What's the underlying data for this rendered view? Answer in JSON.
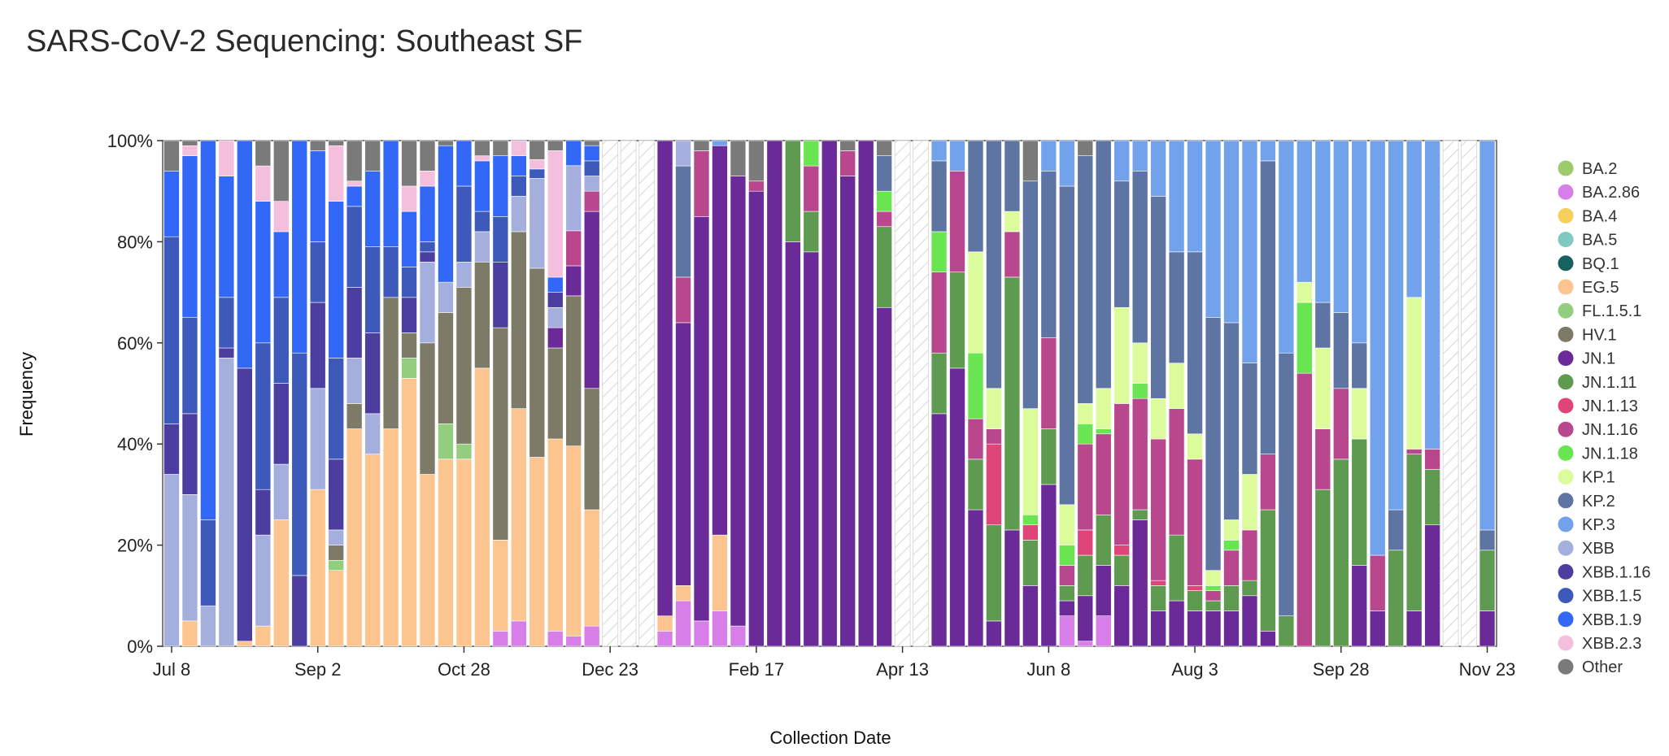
{
  "chart_data": {
    "type": "bar",
    "stacked": true,
    "title": "SARS-CoV-2 Sequencing: Southeast SF",
    "xlabel": "Collection Date",
    "ylabel": "Frequency",
    "ylim": [
      0,
      100
    ],
    "yticks": [
      "0%",
      "20%",
      "40%",
      "60%",
      "80%",
      "100%"
    ],
    "x_tick_labels": [
      "Jul 8",
      "Sep 2",
      "Oct 28",
      "Dec 23",
      "Feb 17",
      "Apr 13",
      "Jun 8",
      "Aug 3",
      "Sep 28",
      "Nov 23"
    ],
    "legend": [
      {
        "name": "BA.2",
        "color": "#9dca6b"
      },
      {
        "name": "BA.2.86",
        "color": "#d77ee8"
      },
      {
        "name": "BA.4",
        "color": "#f7cf5b"
      },
      {
        "name": "BA.5",
        "color": "#7fc9c0"
      },
      {
        "name": "BQ.1",
        "color": "#17615f"
      },
      {
        "name": "EG.5",
        "color": "#fcc48e"
      },
      {
        "name": "FL.1.5.1",
        "color": "#93cd7e"
      },
      {
        "name": "HV.1",
        "color": "#7d7b67"
      },
      {
        "name": "JN.1",
        "color": "#6a2a97"
      },
      {
        "name": "JN.1.11",
        "color": "#5f9a51"
      },
      {
        "name": "JN.1.13",
        "color": "#e0457a"
      },
      {
        "name": "JN.1.16",
        "color": "#b9478d"
      },
      {
        "name": "JN.1.18",
        "color": "#68e550"
      },
      {
        "name": "KP.1",
        "color": "#dcfc9c"
      },
      {
        "name": "KP.2",
        "color": "#5e74a3"
      },
      {
        "name": "KP.3",
        "color": "#72a2ec"
      },
      {
        "name": "XBB",
        "color": "#a5afdd"
      },
      {
        "name": "XBB.1.16",
        "color": "#4c3ea0"
      },
      {
        "name": "XBB.1.5",
        "color": "#3d59ba"
      },
      {
        "name": "XBB.1.9",
        "color": "#3367f5"
      },
      {
        "name": "XBB.2.3",
        "color": "#f3bfdd"
      },
      {
        "name": "Other",
        "color": "#7a7a7a"
      }
    ],
    "weeks": [
      {
        "w": 0,
        "s": {
          "XBB": 34,
          "XBB.1.16": 10,
          "XBB.1.5": 37,
          "XBB.1.9": 13,
          "Other": 6
        }
      },
      {
        "w": 1,
        "s": {
          "EG.5": 5,
          "XBB": 25,
          "XBB.1.16": 16,
          "XBB.1.5": 19,
          "XBB.1.9": 32,
          "XBB.2.3": 2,
          "Other": 1
        }
      },
      {
        "w": 2,
        "s": {
          "XBB": 8,
          "XBB.1.5": 17,
          "XBB.1.9": 75
        }
      },
      {
        "w": 3,
        "s": {
          "XBB": 57,
          "XBB.1.16": 2,
          "XBB.1.5": 10,
          "XBB.1.9": 24,
          "XBB.2.3": 7
        }
      },
      {
        "w": 4,
        "s": {
          "EG.5": 1,
          "XBB.1.16": 54,
          "XBB.1.9": 45
        }
      },
      {
        "w": 5,
        "s": {
          "EG.5": 4,
          "XBB": 18,
          "XBB.1.16": 9,
          "XBB.1.5": 29,
          "XBB.1.9": 28,
          "XBB.2.3": 7,
          "Other": 5
        }
      },
      {
        "w": 6,
        "s": {
          "EG.5": 25,
          "XBB": 11,
          "XBB.1.16": 16,
          "XBB.1.5": 17,
          "XBB.1.9": 13,
          "XBB.2.3": 6,
          "Other": 12
        }
      },
      {
        "w": 7,
        "s": {
          "XBB.1.16": 14,
          "XBB.1.5": 44,
          "XBB.1.9": 42
        }
      },
      {
        "w": 8,
        "s": {
          "EG.5": 31,
          "XBB": 20,
          "XBB.1.16": 17,
          "XBB.1.5": 12,
          "XBB.1.9": 18,
          "Other": 2
        }
      },
      {
        "w": 9,
        "s": {
          "EG.5": 15,
          "FL.1.5.1": 2,
          "HV.1": 3,
          "XBB": 3,
          "XBB.1.16": 14,
          "XBB.1.5": 20,
          "XBB.1.9": 31,
          "XBB.2.3": 11,
          "Other": 1
        }
      },
      {
        "w": 10,
        "s": {
          "EG.5": 43,
          "HV.1": 5,
          "XBB": 9,
          "XBB.1.16": 14,
          "XBB.1.5": 16,
          "XBB.1.9": 4,
          "XBB.2.3": 1,
          "Other": 8
        }
      },
      {
        "w": 11,
        "s": {
          "EG.5": 38,
          "XBB": 8,
          "XBB.1.16": 16,
          "XBB.1.5": 17,
          "XBB.1.9": 15,
          "Other": 6
        }
      },
      {
        "w": 12,
        "s": {
          "EG.5": 43,
          "HV.1": 26,
          "XBB.1.5": 10,
          "XBB.1.9": 21
        }
      },
      {
        "w": 13,
        "s": {
          "EG.5": 53,
          "FL.1.5.1": 4,
          "HV.1": 5,
          "XBB.1.16": 7,
          "XBB.1.5": 6,
          "XBB.1.9": 11,
          "XBB.2.3": 5,
          "Other": 9
        }
      },
      {
        "w": 14,
        "s": {
          "EG.5": 34,
          "HV.1": 26,
          "XBB": 16,
          "XBB.1.16": 2,
          "XBB.1.5": 2,
          "XBB.1.9": 11,
          "XBB.2.3": 3,
          "Other": 6
        }
      },
      {
        "w": 15,
        "s": {
          "EG.5": 37,
          "FL.1.5.1": 7,
          "HV.1": 22,
          "XBB": 6,
          "XBB.1.9": 27,
          "Other": 1
        }
      },
      {
        "w": 16,
        "s": {
          "EG.5": 37,
          "FL.1.5.1": 3,
          "HV.1": 31,
          "XBB": 5,
          "XBB.1.5": 15,
          "XBB.1.9": 9
        }
      },
      {
        "w": 17,
        "s": {
          "EG.5": 55,
          "HV.1": 21,
          "XBB": 6,
          "XBB.1.5": 4,
          "XBB.1.9": 10,
          "XBB.2.3": 1,
          "Other": 3
        }
      },
      {
        "w": 18,
        "s": {
          "BA.2.86": 3,
          "EG.5": 18,
          "HV.1": 42,
          "XBB.1.16": 13,
          "XBB.1.5": 9,
          "XBB.1.9": 12,
          "Other": 3
        }
      },
      {
        "w": 19,
        "s": {
          "BA.2.86": 5,
          "EG.5": 42,
          "HV.1": 35,
          "XBB": 7,
          "XBB.1.5": 4,
          "XBB.1.9": 4,
          "XBB.2.3": 3
        }
      },
      {
        "w": 20,
        "s": {
          "EG.5": 40,
          "HV.1": 40,
          "XBB": 19,
          "XBB.1.5": 2,
          "XBB.2.3": 2,
          "Other": 4
        }
      },
      {
        "w": 21,
        "s": {
          "BA.2.86": 3,
          "EG.5": 38,
          "HV.1": 18,
          "JN.1": 4,
          "XBB": 4,
          "XBB.1.16": 3,
          "XBB.1.9": 3,
          "XBB.2.3": 25,
          "Other": 2
        }
      },
      {
        "w": 22,
        "s": {
          "BA.2.86": 2,
          "EG.5": 38,
          "HV.1": 30,
          "JN.1": 6,
          "JN.1.16": 7,
          "XBB": 13,
          "XBB.1.9": 5
        }
      },
      {
        "w": 23,
        "s": {
          "BA.2.86": 4,
          "EG.5": 23,
          "HV.1": 24,
          "JN.1": 35,
          "JN.1.16": 4,
          "XBB": 3,
          "XBB.1.5": 3,
          "XBB.1.9": 3,
          "Other": 1
        }
      },
      {
        "w": 24,
        "s": {}
      },
      {
        "w": 25,
        "s": {}
      },
      {
        "w": 26,
        "s": {}
      },
      {
        "w": 27,
        "s": {
          "BA.2.86": 3,
          "EG.5": 3,
          "JN.1": 94
        }
      },
      {
        "w": 28,
        "s": {
          "BA.2.86": 9,
          "EG.5": 3,
          "JN.1": 52,
          "JN.1.16": 9,
          "KP.2": 22,
          "XBB": 5
        }
      },
      {
        "w": 29,
        "s": {
          "BA.2.86": 5,
          "JN.1": 80,
          "JN.1.16": 13,
          "Other": 2
        }
      },
      {
        "w": 30,
        "s": {
          "BA.2.86": 7,
          "EG.5": 15,
          "JN.1": 77,
          "KP.3": 1
        }
      },
      {
        "w": 31,
        "s": {
          "BA.2.86": 4,
          "JN.1": 89,
          "Other": 7
        }
      },
      {
        "w": 32,
        "s": {
          "JN.1": 90,
          "JN.1.16": 2,
          "Other": 8
        }
      },
      {
        "w": 33,
        "s": {
          "JN.1": 100
        }
      },
      {
        "w": 34,
        "s": {
          "JN.1": 80,
          "JN.1.11": 20
        }
      },
      {
        "w": 35,
        "s": {
          "JN.1": 78,
          "JN.1.11": 8,
          "JN.1.16": 9,
          "JN.1.18": 5
        }
      },
      {
        "w": 36,
        "s": {
          "JN.1": 100
        }
      },
      {
        "w": 37,
        "s": {
          "JN.1": 93,
          "JN.1.16": 5,
          "Other": 2
        }
      },
      {
        "w": 38,
        "s": {
          "JN.1": 100
        }
      },
      {
        "w": 39,
        "s": {
          "JN.1": 67,
          "JN.1.11": 16,
          "JN.1.16": 3,
          "JN.1.18": 4,
          "KP.2": 7,
          "Other": 3
        }
      },
      {
        "w": 40,
        "s": {}
      },
      {
        "w": 41,
        "s": {}
      },
      {
        "w": 42,
        "s": {
          "JN.1": 46,
          "JN.1.11": 12,
          "JN.1.16": 16,
          "JN.1.18": 8,
          "KP.2": 14,
          "KP.3": 4
        }
      },
      {
        "w": 43,
        "s": {
          "JN.1": 55,
          "JN.1.11": 19,
          "JN.1.16": 20,
          "KP.3": 6
        }
      },
      {
        "w": 44,
        "s": {
          "JN.1": 27,
          "JN.1.11": 10,
          "JN.1.16": 8,
          "JN.1.18": 13,
          "KP.1": 20,
          "KP.2": 22
        }
      },
      {
        "w": 45,
        "s": {
          "JN.1": 5,
          "JN.1.11": 19,
          "JN.1.13": 16,
          "JN.1.16": 3,
          "KP.1": 8,
          "KP.2": 49
        }
      },
      {
        "w": 46,
        "s": {
          "JN.1": 23,
          "JN.1.11": 50,
          "JN.1.16": 9,
          "KP.1": 4,
          "KP.2": 14
        }
      },
      {
        "w": 47,
        "s": {
          "JN.1": 12,
          "JN.1.11": 9,
          "JN.1.13": 3,
          "JN.1.18": 2,
          "KP.1": 21,
          "KP.2": 45,
          "Other": 8
        }
      },
      {
        "w": 48,
        "s": {
          "JN.1": 32,
          "JN.1.11": 11,
          "JN.1.16": 18,
          "KP.2": 33,
          "KP.3": 6
        }
      },
      {
        "w": 49,
        "s": {
          "BA.2.86": 6,
          "JN.1": 3,
          "JN.1.11": 3,
          "JN.1.16": 4,
          "JN.1.18": 4,
          "KP.1": 8,
          "KP.2": 63,
          "KP.3": 9
        }
      },
      {
        "w": 50,
        "s": {
          "BA.2.86": 1,
          "JN.1": 9,
          "JN.1.11": 8,
          "JN.1.13": 5,
          "JN.1.16": 17,
          "JN.1.18": 4,
          "KP.1": 4,
          "KP.2": 49,
          "Other": 3
        }
      },
      {
        "w": 51,
        "s": {
          "BA.2.86": 6,
          "JN.1": 10,
          "JN.1.11": 10,
          "JN.1.16": 16,
          "JN.1.18": 1,
          "KP.1": 8,
          "KP.2": 49
        }
      },
      {
        "w": 52,
        "s": {
          "JN.1": 12,
          "JN.1.11": 6,
          "JN.1.13": 2,
          "JN.1.16": 28,
          "KP.1": 19,
          "KP.2": 25,
          "KP.3": 8
        }
      },
      {
        "w": 53,
        "s": {
          "JN.1": 25,
          "JN.1.11": 2,
          "JN.1.16": 22,
          "JN.1.18": 3,
          "KP.1": 8,
          "KP.2": 34,
          "KP.3": 6
        }
      },
      {
        "w": 54,
        "s": {
          "JN.1": 7,
          "JN.1.11": 5,
          "JN.1.13": 1,
          "JN.1.16": 28,
          "KP.1": 8,
          "KP.2": 40,
          "KP.3": 11
        }
      },
      {
        "w": 55,
        "s": {
          "JN.1": 9,
          "JN.1.11": 13,
          "JN.1.16": 25,
          "KP.1": 9,
          "KP.2": 22,
          "KP.3": 22
        }
      },
      {
        "w": 56,
        "s": {
          "JN.1": 7,
          "JN.1.11": 4,
          "JN.1.13": 1,
          "JN.1.16": 25,
          "KP.1": 5,
          "KP.2": 36,
          "KP.3": 22
        }
      },
      {
        "w": 57,
        "s": {
          "JN.1": 7,
          "JN.1.11": 2,
          "JN.1.16": 2,
          "JN.1.18": 1,
          "KP.1": 3,
          "KP.2": 50,
          "KP.3": 35
        }
      },
      {
        "w": 58,
        "s": {
          "JN.1": 7,
          "JN.1.11": 5,
          "JN.1.16": 7,
          "JN.1.18": 2,
          "KP.1": 4,
          "KP.2": 39,
          "KP.3": 36
        }
      },
      {
        "w": 59,
        "s": {
          "JN.1": 10,
          "JN.1.11": 3,
          "JN.1.16": 10,
          "KP.1": 11,
          "KP.2": 22,
          "KP.3": 44
        }
      },
      {
        "w": 60,
        "s": {
          "JN.1": 3,
          "JN.1.11": 24,
          "JN.1.16": 11,
          "KP.2": 58,
          "KP.3": 4
        }
      },
      {
        "w": 61,
        "s": {
          "JN.1.11": 6,
          "KP.2": 52,
          "KP.3": 42
        }
      },
      {
        "w": 62,
        "s": {
          "JN.1.16": 54,
          "JN.1.18": 14,
          "KP.1": 4,
          "KP.3": 28
        }
      },
      {
        "w": 63,
        "s": {
          "JN.1.11": 31,
          "JN.1.16": 12,
          "KP.1": 16,
          "KP.2": 9,
          "KP.3": 32
        }
      },
      {
        "w": 64,
        "s": {
          "JN.1.11": 37,
          "JN.1.16": 14,
          "KP.2": 15,
          "KP.3": 34
        }
      },
      {
        "w": 65,
        "s": {
          "JN.1": 16,
          "JN.1.11": 25,
          "KP.1": 10,
          "KP.2": 9,
          "KP.3": 40
        }
      },
      {
        "w": 66,
        "s": {
          "JN.1": 7,
          "JN.1.16": 11,
          "KP.3": 82
        }
      },
      {
        "w": 67,
        "s": {
          "JN.1.11": 19,
          "KP.2": 8,
          "KP.3": 73
        }
      },
      {
        "w": 68,
        "s": {
          "JN.1": 7,
          "JN.1.11": 31,
          "JN.1.16": 1,
          "KP.1": 30,
          "KP.3": 31
        }
      },
      {
        "w": 69,
        "s": {
          "JN.1": 24,
          "JN.1.11": 11,
          "JN.1.16": 4,
          "KP.3": 61
        }
      },
      {
        "w": 70,
        "s": {}
      },
      {
        "w": 71,
        "s": {}
      },
      {
        "w": 72,
        "s": {
          "JN.1": 7,
          "JN.1.11": 12,
          "KP.2": 4,
          "KP.3": 77
        }
      }
    ]
  }
}
